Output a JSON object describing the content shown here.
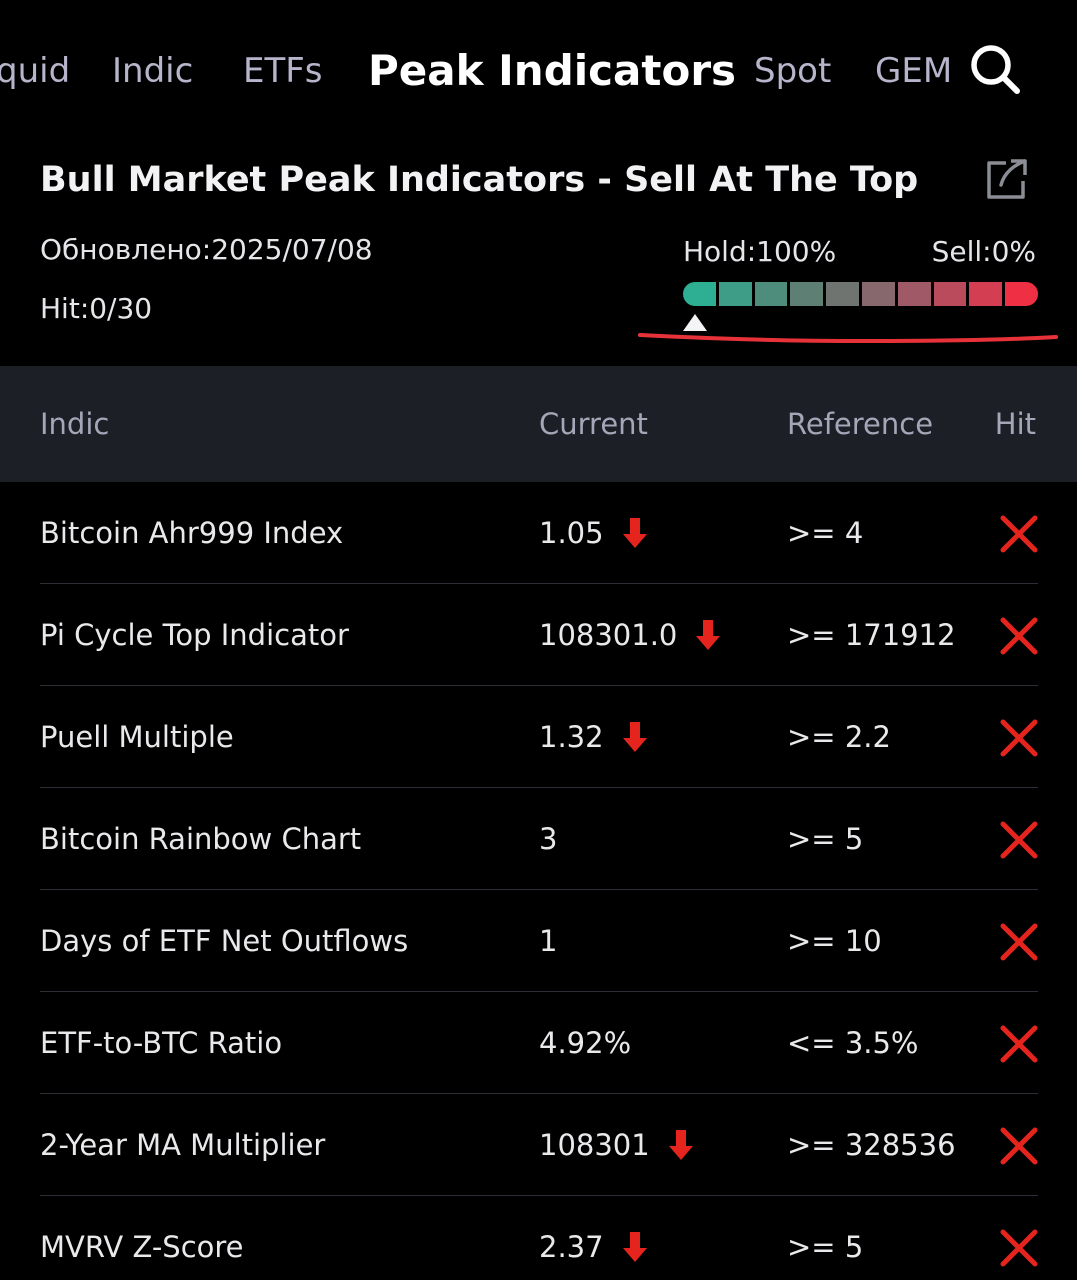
{
  "nav": {
    "tabs": [
      {
        "label": "quid",
        "active": false
      },
      {
        "label": "Indic",
        "active": false
      },
      {
        "label": "ETFs",
        "active": false
      },
      {
        "label": "Peak Indicators",
        "active": true
      },
      {
        "label": "Spot",
        "active": false
      },
      {
        "label": "GEM",
        "active": false
      }
    ],
    "search_icon": "search-icon"
  },
  "header": {
    "title": "Bull Market Peak Indicators - Sell At The Top",
    "share_icon": "share-icon",
    "updated": "Обновлено:2025/07/08",
    "hit": "Hit:0/30",
    "hold": "Hold:100%",
    "sell": "Sell:0%",
    "gauge": {
      "segment_colors": [
        "#2eae92",
        "#3e9d86",
        "#4e8d7c",
        "#5e7f74",
        "#6f7470",
        "#87686c",
        "#a05a67",
        "#b94b5d",
        "#d33e52",
        "#ee2f44"
      ],
      "position": 0.0
    },
    "annotation_color": "#e8323a"
  },
  "table": {
    "columns": {
      "indicator": "Indic",
      "current": "Current",
      "reference": "Reference",
      "hit": "Hit"
    },
    "rows": [
      {
        "name": "Bitcoin Ahr999 Index",
        "current": "1.05",
        "trend": "down",
        "reference": ">= 4",
        "hit": false
      },
      {
        "name": "Pi Cycle Top Indicator",
        "current": "108301.0",
        "trend": "down",
        "reference": ">= 171912",
        "hit": false
      },
      {
        "name": "Puell Multiple",
        "current": "1.32",
        "trend": "down",
        "reference": ">= 2.2",
        "hit": false
      },
      {
        "name": "Bitcoin Rainbow Chart",
        "current": "3",
        "trend": "",
        "reference": ">= 5",
        "hit": false
      },
      {
        "name": "Days of ETF Net Outflows",
        "current": "1",
        "trend": "",
        "reference": ">= 10",
        "hit": false
      },
      {
        "name": "ETF-to-BTC Ratio",
        "current": "4.92%",
        "trend": "",
        "reference": "<= 3.5%",
        "hit": false
      },
      {
        "name": "2-Year MA Multiplier",
        "current": "108301",
        "trend": "down",
        "reference": ">= 328536",
        "hit": false
      },
      {
        "name": "MVRV Z-Score",
        "current": "2.37",
        "trend": "down",
        "reference": ">= 5",
        "hit": false
      }
    ]
  },
  "colors": {
    "down_arrow": "#e5241d",
    "miss_x": "#e5241d",
    "background": "#000000",
    "header_bg": "#1c1f26"
  }
}
